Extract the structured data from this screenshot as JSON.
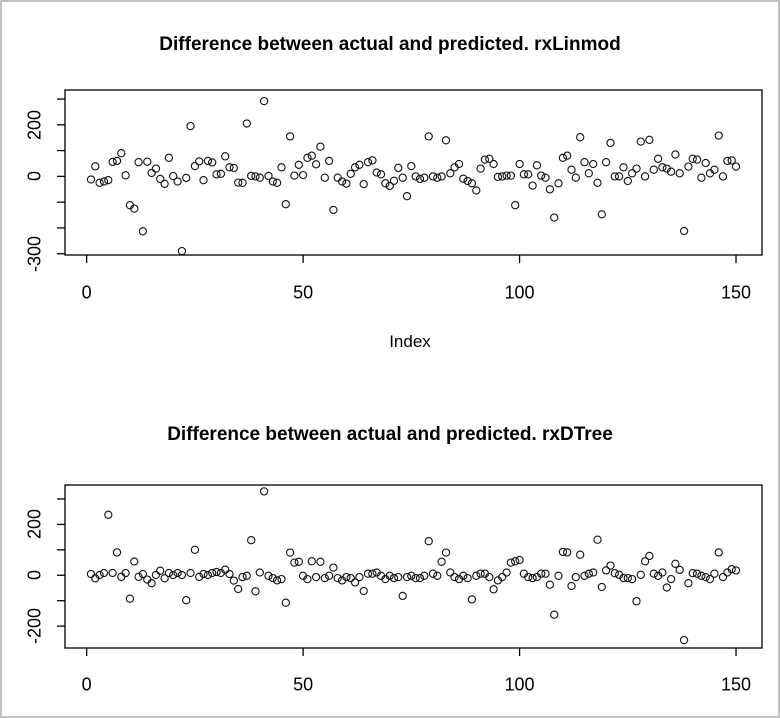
{
  "window": {
    "background": "#ffffff",
    "border_color": "#c2c2c2"
  },
  "chart_data": [
    {
      "type": "scatter",
      "title": "Difference between actual and predicted. rxLinmod",
      "xlabel": "Index",
      "ylabel": "",
      "marker": "open-circle",
      "grid": false,
      "x_start": 1,
      "xlim": [
        -5,
        156
      ],
      "ylim": [
        -305,
        335
      ],
      "x_ticks": [
        {
          "v": 0,
          "label": "0"
        },
        {
          "v": 50,
          "label": "50"
        },
        {
          "v": 100,
          "label": "100"
        },
        {
          "v": 150,
          "label": "150"
        }
      ],
      "y_ticks": [
        {
          "v": 300,
          "label": ""
        },
        {
          "v": 200,
          "label": "200"
        },
        {
          "v": 100,
          "label": ""
        },
        {
          "v": 0,
          "label": "0"
        },
        {
          "v": -100,
          "label": ""
        },
        {
          "v": -200,
          "label": ""
        },
        {
          "v": -300,
          "label": "-300"
        }
      ],
      "values": [
        -12,
        39,
        -25,
        -20,
        -15,
        56,
        60,
        90,
        4,
        -112,
        -125,
        55,
        -213,
        57,
        13,
        30,
        -10,
        -29,
        72,
        1,
        -20,
        -290,
        -6,
        195,
        40,
        58,
        -15,
        60,
        54,
        8,
        10,
        78,
        35,
        33,
        -24,
        -25,
        205,
        2,
        0,
        -5,
        292,
        2,
        -20,
        -25,
        35,
        -108,
        155,
        3,
        45,
        5,
        72,
        80,
        47,
        115,
        -5,
        60,
        -130,
        -5,
        -20,
        -28,
        10,
        35,
        45,
        -30,
        55,
        62,
        15,
        8,
        -27,
        -37,
        -17,
        33,
        -5,
        -77,
        40,
        0,
        -10,
        -5,
        155,
        0,
        -5,
        0,
        140,
        12,
        35,
        48,
        -9,
        -18,
        -27,
        -55,
        30,
        65,
        68,
        48,
        -2,
        0,
        3,
        3,
        -112,
        48,
        8,
        8,
        -36,
        43,
        3,
        -5,
        -50,
        -160,
        -27,
        72,
        80,
        26,
        -5,
        152,
        55,
        12,
        48,
        -25,
        -147,
        55,
        130,
        0,
        0,
        35,
        -18,
        12,
        30,
        135,
        0,
        142,
        26,
        68,
        35,
        30,
        18,
        85,
        12,
        -212,
        38,
        68,
        65,
        -5,
        52,
        12,
        26,
        158,
        0,
        60,
        62,
        38
      ]
    },
    {
      "type": "scatter",
      "title": "Difference between actual and predicted. rxDTree",
      "xlabel": "",
      "ylabel": "",
      "marker": "open-circle",
      "grid": false,
      "x_start": 1,
      "xlim": [
        -5,
        156
      ],
      "ylim": [
        -286,
        355
      ],
      "x_ticks": [
        {
          "v": 0,
          "label": "0"
        },
        {
          "v": 50,
          "label": "50"
        },
        {
          "v": 100,
          "label": "100"
        },
        {
          "v": 150,
          "label": "150"
        }
      ],
      "y_ticks": [
        {
          "v": 300,
          "label": ""
        },
        {
          "v": 200,
          "label": "200"
        },
        {
          "v": 100,
          "label": ""
        },
        {
          "v": 0,
          "label": "0"
        },
        {
          "v": -100,
          "label": ""
        },
        {
          "v": -200,
          "label": "-200"
        }
      ],
      "values": [
        5,
        -12,
        1,
        9,
        238,
        9,
        90,
        -6,
        9,
        -92,
        54,
        -6,
        5,
        -17,
        -31,
        1,
        18,
        -12,
        9,
        1,
        9,
        1,
        -98,
        9,
        100,
        -6,
        5,
        1,
        9,
        13,
        9,
        22,
        5,
        -21,
        -54,
        -7,
        -2,
        138,
        -63,
        11,
        330,
        -2,
        -11,
        -20,
        -15,
        -108,
        89,
        50,
        53,
        -2,
        -15,
        55,
        -7,
        53,
        -11,
        -2,
        30,
        -11,
        -20,
        -7,
        -11,
        -28,
        -7,
        -62,
        6,
        6,
        11,
        -2,
        -15,
        -2,
        -11,
        -7,
        -81,
        -7,
        -2,
        -11,
        -11,
        -2,
        134,
        6,
        -2,
        53,
        89,
        11,
        -7,
        -15,
        -2,
        -11,
        -95,
        -2,
        6,
        6,
        -7,
        -55,
        -20,
        -7,
        11,
        50,
        55,
        60,
        6,
        -7,
        -11,
        -7,
        6,
        6,
        -37,
        -155,
        -2,
        92,
        90,
        -42,
        -7,
        81,
        -2,
        6,
        11,
        140,
        -46,
        19,
        38,
        8,
        2,
        -11,
        -11,
        -15,
        -102,
        2,
        55,
        76,
        6,
        -2,
        11,
        -48,
        -15,
        45,
        21,
        -255,
        -31,
        8,
        6,
        -2,
        -7,
        -15,
        6,
        90,
        -7,
        11,
        24,
        19
      ]
    }
  ]
}
